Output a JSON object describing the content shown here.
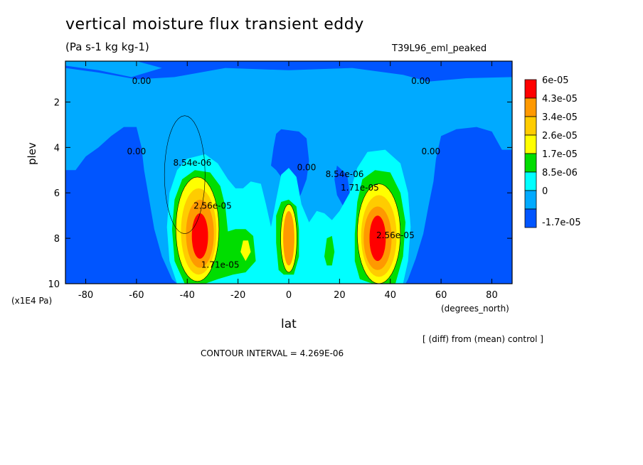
{
  "title": "vertical moisture flux transient eddy",
  "units": "(Pa s-1 kg kg-1)",
  "run_name": "T39L96_eml_peaked",
  "diff_note": "[ (diff) from (mean) control ]",
  "contour_interval": "CONTOUR INTERVAL = 4.269E-06",
  "chart_data": {
    "type": "heatmap",
    "title": "vertical moisture flux transient eddy",
    "subtitle": "(Pa s-1 kg kg-1)",
    "xlabel": "lat",
    "xunits": "(degrees_north)",
    "ylabel": "plev",
    "yunits": "(x1E4 Pa)",
    "xlim": [
      -88,
      88
    ],
    "ylim": [
      10,
      0.2
    ],
    "x_ticks": [
      -80,
      -60,
      -40,
      -20,
      0,
      20,
      40,
      60,
      80
    ],
    "y_ticks": [
      2,
      4,
      6,
      8,
      10
    ],
    "x_tick_labels": [
      "-80",
      "-60",
      "-40",
      "-20",
      "0",
      "20",
      "40",
      "60",
      "80"
    ],
    "y_tick_labels": [
      "2",
      "4",
      "6",
      "8",
      "10"
    ],
    "legend_levels": [
      "6e-05",
      "4.3e-05",
      "3.4e-05",
      "2.6e-05",
      "1.7e-05",
      "8.5e-06",
      "0",
      "-1.7e-05"
    ],
    "legend_colors": [
      "#ff0000",
      "#ff9900",
      "#ffcc00",
      "#ffff00",
      "#00dd00",
      "#00ffff",
      "#00aaff",
      "#0055ff"
    ],
    "contour_labels": [
      {
        "text": "0.00",
        "lat": -58,
        "plev": 1.2
      },
      {
        "text": "0.00",
        "lat": 52,
        "plev": 1.2
      },
      {
        "text": "0.00",
        "lat": -60,
        "plev": 4.3
      },
      {
        "text": "0.00",
        "lat": 7,
        "plev": 5.0
      },
      {
        "text": "0.00",
        "lat": 56,
        "plev": 4.3
      },
      {
        "text": "8.54e-06",
        "lat": -38,
        "plev": 4.8
      },
      {
        "text": "8.54e-06",
        "lat": 22,
        "plev": 5.3
      },
      {
        "text": "2.56e-05",
        "lat": -30,
        "plev": 6.7
      },
      {
        "text": "1.71e-05",
        "lat": 28,
        "plev": 5.9
      },
      {
        "text": "1.71e-05",
        "lat": -27,
        "plev": 9.3
      },
      {
        "text": "2.56e-05",
        "lat": 42,
        "plev": 8.0
      }
    ],
    "features": [
      {
        "name": "southern-subtropical-maximum",
        "lat": -35,
        "plev": 7.8,
        "value": 6e-05
      },
      {
        "name": "northern-subtropical-maximum",
        "lat": 35,
        "plev": 8.0,
        "value": 6e-05
      },
      {
        "name": "equatorial-maximum",
        "lat": 0,
        "plev": 8.0,
        "value": 4.3e-05
      },
      {
        "name": "polar-minimum-south",
        "lat": -80,
        "plev": 7,
        "value": -1.7e-05
      },
      {
        "name": "polar-minimum-north",
        "lat": 80,
        "plev": 7,
        "value": -1.7e-05
      }
    ],
    "colors": {
      "red": "#ff0000",
      "orange": "#ff9900",
      "gold": "#ffcc00",
      "yellow": "#ffff00",
      "green": "#00dd00",
      "cyan": "#00ffff",
      "sky": "#00aaff",
      "blue": "#0055ff"
    }
  }
}
